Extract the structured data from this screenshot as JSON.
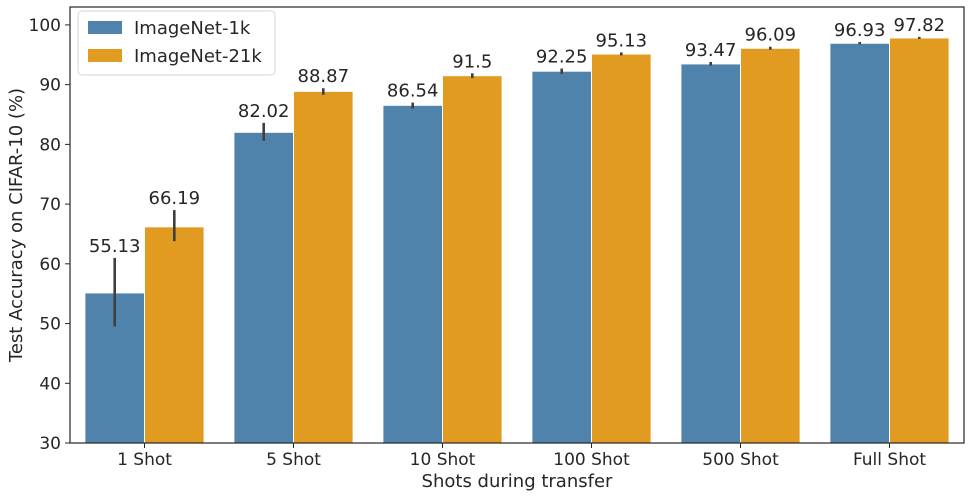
{
  "chart_data": {
    "type": "bar",
    "title": "",
    "xlabel": "Shots during transfer",
    "ylabel": "Test Accuracy on CIFAR-10 (%)",
    "ylim": [
      30,
      103
    ],
    "yticks": [
      30,
      40,
      50,
      60,
      70,
      80,
      90,
      100
    ],
    "grid": false,
    "legend_position": "top-left",
    "categories": [
      "1 Shot",
      "5 Shot",
      "10 Shot",
      "100 Shot",
      "500 Shot",
      "Full Shot"
    ],
    "series": [
      {
        "name": "ImageNet-1k",
        "color": "#5083ab",
        "values": [
          55.13,
          82.02,
          86.54,
          92.25,
          93.47,
          96.93
        ],
        "labels": [
          "55.13",
          "82.02",
          "86.54",
          "92.25",
          "93.47",
          "96.93"
        ],
        "error_low": [
          49.5,
          80.6,
          86.0,
          91.8,
          93.2,
          96.75
        ],
        "error_high": [
          61.0,
          83.6,
          87.0,
          92.7,
          93.8,
          97.15
        ]
      },
      {
        "name": "ImageNet-21k",
        "color": "#e09b20",
        "values": [
          66.19,
          88.87,
          91.5,
          95.13,
          96.09,
          97.82
        ],
        "labels": [
          "66.19",
          "88.87",
          "91.5",
          "95.13",
          "96.09",
          "97.82"
        ],
        "error_low": [
          63.8,
          88.3,
          91.1,
          94.9,
          95.85,
          97.65
        ],
        "error_high": [
          69.0,
          89.4,
          91.9,
          95.4,
          96.35,
          98.0
        ]
      }
    ],
    "error_bar_color": "#3f3f3f"
  }
}
